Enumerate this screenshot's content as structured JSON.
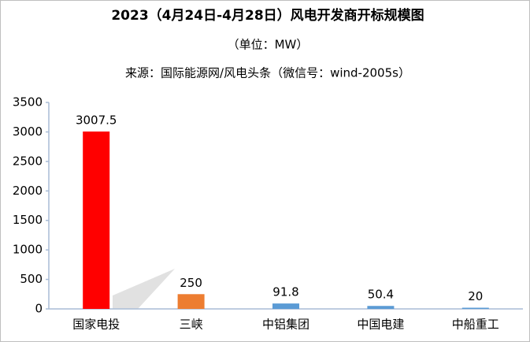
{
  "chart_data": {
    "type": "bar",
    "title": "2023（4月24日-4月28日）风电开发商开标规模图",
    "subtitle": "（单位：MW）",
    "source": "来源：国际能源网/风电头条（微信号：wind-2005s）",
    "categories": [
      "国家电投",
      "三峡",
      "中铝集团",
      "中国电建",
      "中船重工"
    ],
    "values": [
      3007.5,
      250,
      91.8,
      50.4,
      20
    ],
    "colors": [
      "#ff0000",
      "#ed7d31",
      "#5b9bd5",
      "#5b9bd5",
      "#5b9bd5"
    ],
    "ylim": [
      0,
      3500
    ],
    "yticks": [
      0,
      500,
      1000,
      1500,
      2000,
      2500,
      3000,
      3500
    ],
    "grid": false
  }
}
